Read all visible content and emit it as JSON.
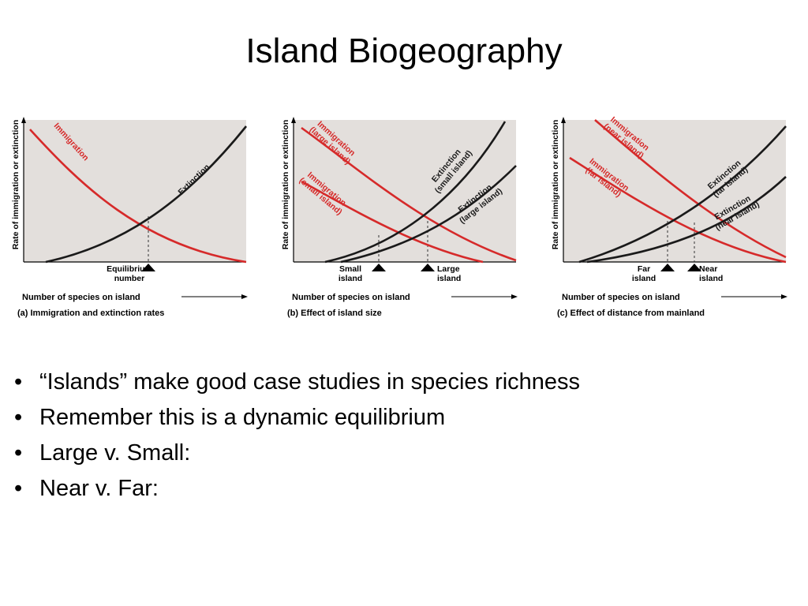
{
  "title": "Island Biogeography",
  "figure": {
    "axis_y_label": "Rate of immigration or extinction",
    "axis_x_label": "Number of species on island",
    "panels": [
      {
        "caption": "(a) Immigration and extinction rates",
        "curves": [
          {
            "label_lines": [
              "Immigration"
            ],
            "color": "#d62a2a",
            "kind": "immigration"
          },
          {
            "label_lines": [
              "Extinction"
            ],
            "color": "#1a1a1a",
            "kind": "extinction"
          }
        ],
        "markers": [
          {
            "label_lines": [
              "Equilibrium",
              "number"
            ]
          }
        ]
      },
      {
        "caption": "(b) Effect of island size",
        "curves": [
          {
            "label_lines": [
              "Immigration",
              "(large island)"
            ],
            "color": "#d62a2a",
            "kind": "immigration"
          },
          {
            "label_lines": [
              "Immigration",
              "(small island)"
            ],
            "color": "#d62a2a",
            "kind": "immigration"
          },
          {
            "label_lines": [
              "Extinction",
              "(small island)"
            ],
            "color": "#1a1a1a",
            "kind": "extinction"
          },
          {
            "label_lines": [
              "Extinction",
              "(large island)"
            ],
            "color": "#1a1a1a",
            "kind": "extinction"
          }
        ],
        "markers": [
          {
            "label_lines": [
              "Small",
              "island"
            ]
          },
          {
            "label_lines": [
              "Large",
              "island"
            ]
          }
        ]
      },
      {
        "caption": "(c) Effect of distance from mainland",
        "curves": [
          {
            "label_lines": [
              "Immigration",
              "(near island)"
            ],
            "color": "#d62a2a",
            "kind": "immigration"
          },
          {
            "label_lines": [
              "Immigration",
              "(far island)"
            ],
            "color": "#d62a2a",
            "kind": "immigration"
          },
          {
            "label_lines": [
              "Extinction",
              "(far island)"
            ],
            "color": "#1a1a1a",
            "kind": "extinction"
          },
          {
            "label_lines": [
              "Extinction",
              "(near island)"
            ],
            "color": "#1a1a1a",
            "kind": "extinction"
          }
        ],
        "markers": [
          {
            "label_lines": [
              "Far",
              "island"
            ]
          },
          {
            "label_lines": [
              "Near",
              "island"
            ]
          }
        ]
      }
    ]
  },
  "bullets": [
    "“Islands” make good case studies in species richness",
    "Remember this is a dynamic equilibrium",
    "Large v. Small:",
    "Near v. Far:"
  ],
  "bullet_glyph": "•",
  "colors": {
    "plot_background": "#e3dfdc",
    "immigration": "#d62a2a",
    "extinction": "#1a1a1a"
  }
}
